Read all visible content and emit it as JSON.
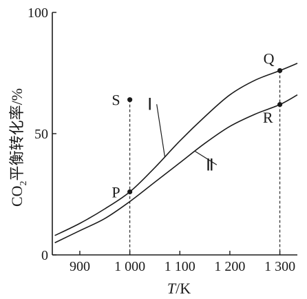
{
  "chart_data": {
    "type": "line",
    "xlabel": {
      "symbol": "T",
      "unit": "/K"
    },
    "ylabel": {
      "prefix": "CO",
      "subscript": "2",
      "rest": "平衡转化率/%"
    },
    "xlim": [
      845,
      1335
    ],
    "ylim": [
      0,
      100
    ],
    "x_ticks": [
      900,
      1000,
      1100,
      1200,
      1300
    ],
    "x_tick_labels": [
      "900",
      "1 000",
      "1 100",
      "1 200",
      "1 300"
    ],
    "y_ticks": [
      0,
      50,
      100
    ],
    "y_tick_labels": [
      "0",
      "50",
      "100"
    ],
    "series": [
      {
        "name": "Ⅰ",
        "x": [
          850,
          900,
          950,
          1000,
          1050,
          1100,
          1150,
          1200,
          1250,
          1300,
          1335
        ],
        "y": [
          8,
          13,
          19,
          26,
          36,
          47,
          57,
          66,
          72,
          76,
          79
        ]
      },
      {
        "name": "Ⅱ",
        "x": [
          850,
          900,
          950,
          1000,
          1050,
          1100,
          1150,
          1200,
          1250,
          1300,
          1335
        ],
        "y": [
          5,
          10,
          15,
          22,
          30,
          38,
          46,
          53,
          58,
          62,
          66
        ]
      }
    ],
    "points": [
      {
        "label": "S",
        "x": 1000,
        "y": 64,
        "label_side": "left"
      },
      {
        "label": "P",
        "x": 1000,
        "y": 26,
        "label_side": "left"
      },
      {
        "label": "Q",
        "x": 1300,
        "y": 76,
        "label_side": "upper-left"
      },
      {
        "label": "R",
        "x": 1300,
        "y": 62,
        "label_side": "lower-left"
      }
    ],
    "dashed_drops": [
      {
        "x": 1000,
        "from_y": 64
      },
      {
        "x": 1300,
        "from_y": 76
      }
    ],
    "grid": false,
    "curve_labels": [
      {
        "text": "Ⅰ",
        "series": 0,
        "x": 1040,
        "y": 61,
        "leader_to_x": 1070
      },
      {
        "text": "Ⅱ",
        "series": 1,
        "x": 1160,
        "y": 36,
        "leader_to_x": 1130
      }
    ]
  }
}
